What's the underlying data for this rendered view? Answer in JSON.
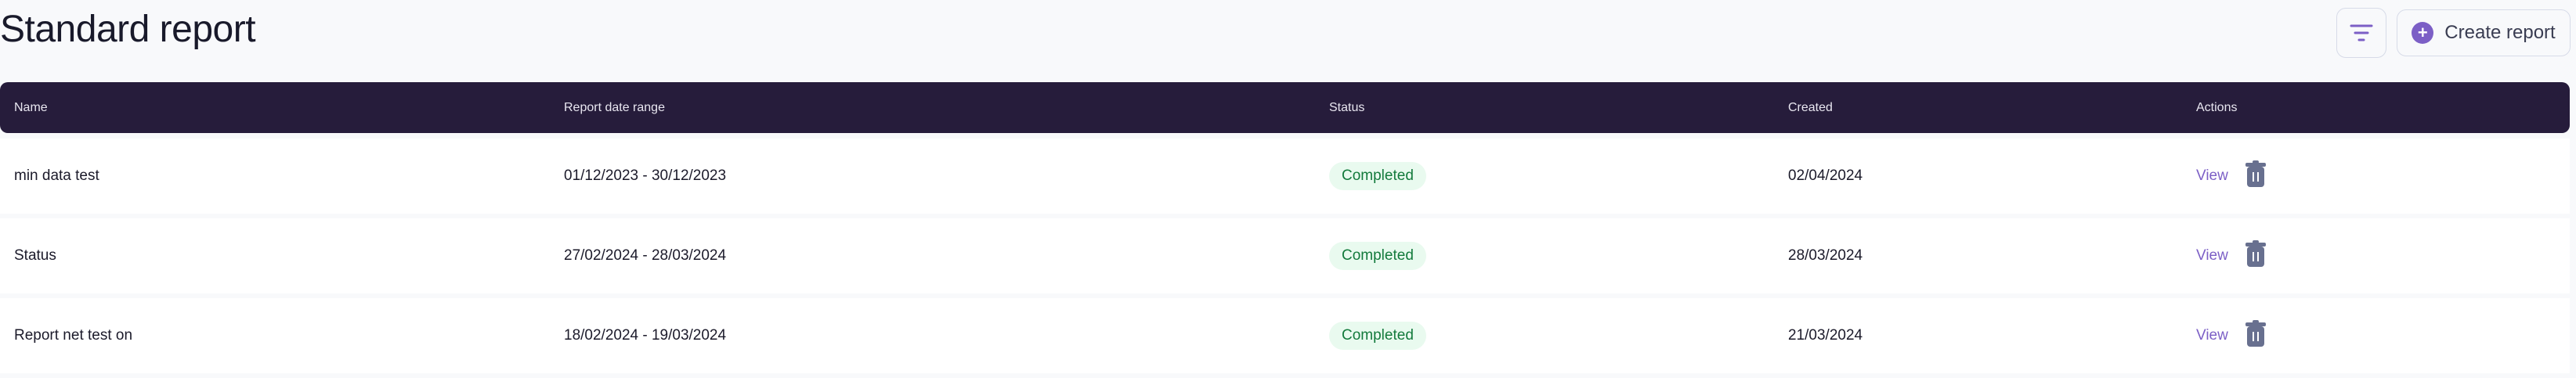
{
  "page": {
    "title": "Standard report"
  },
  "toolbar": {
    "filter_icon": "filter-icon",
    "create_label": "Create report",
    "create_icon": "plus-circle-icon"
  },
  "table": {
    "headers": [
      "Name",
      "Report date range",
      "Status",
      "Created",
      "Actions"
    ],
    "rows": [
      {
        "name": "min data test",
        "range": "01/12/2023 - 30/12/2023",
        "status": "Completed",
        "created": "02/04/2024",
        "view": "View"
      },
      {
        "name": "Status",
        "range": "27/02/2024 - 28/03/2024",
        "status": "Completed",
        "created": "28/03/2024",
        "view": "View"
      },
      {
        "name": "Report net test on",
        "range": "18/02/2024 - 19/03/2024",
        "status": "Completed",
        "created": "21/03/2024",
        "view": "View"
      }
    ]
  },
  "colors": {
    "header_bg": "#261c3b",
    "accent": "#7c5fc6",
    "status_bg": "#e9faef",
    "status_text": "#137a3c",
    "trash": "#68708f"
  }
}
